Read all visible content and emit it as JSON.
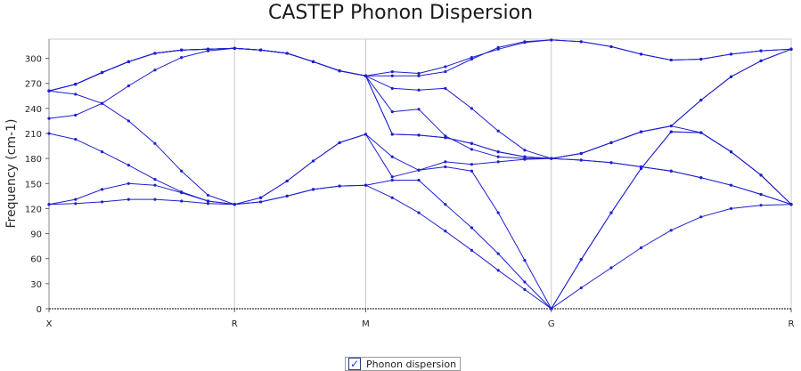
{
  "chart_data": {
    "type": "line",
    "title": "CASTEP Phonon Dispersion",
    "ylabel": "Frequency (cm-1)",
    "xlabel": "",
    "ylim": [
      0,
      323
    ],
    "yticks": [
      0,
      30,
      60,
      90,
      120,
      150,
      180,
      210,
      240,
      270,
      300
    ],
    "x_ticks": [
      {
        "label": "X",
        "x": 0
      },
      {
        "label": "R",
        "x": 1
      },
      {
        "label": "M",
        "x": 1.707
      },
      {
        "label": "G",
        "x": 2.707
      },
      {
        "label": "R",
        "x": 4.0
      }
    ],
    "grid": "vertical lines at high-symmetry points",
    "legend": {
      "label": "Phonon dispersion",
      "checked": true,
      "placement": "bottom-center"
    },
    "colors": {
      "line": "#1f1fd0",
      "grid": "#c8c8c8",
      "axis": "#000000"
    },
    "series": [
      {
        "values": [
          [
            0,
            125
          ],
          [
            0.143,
            126
          ],
          [
            0.286,
            128
          ],
          [
            0.429,
            131
          ],
          [
            0.571,
            131
          ],
          [
            0.714,
            129
          ],
          [
            0.857,
            126
          ],
          [
            1.0,
            125
          ],
          [
            1.141,
            128
          ],
          [
            1.283,
            135
          ],
          [
            1.424,
            143
          ],
          [
            1.566,
            147
          ],
          [
            1.707,
            148
          ],
          [
            1.85,
            133
          ],
          [
            1.993,
            115
          ],
          [
            2.136,
            93
          ],
          [
            2.278,
            70
          ],
          [
            2.421,
            46
          ],
          [
            2.564,
            23
          ],
          [
            2.707,
            0
          ],
          [
            2.868,
            25
          ],
          [
            3.03,
            49
          ],
          [
            3.191,
            73
          ],
          [
            3.353,
            94
          ],
          [
            3.514,
            110
          ],
          [
            3.676,
            120
          ],
          [
            3.837,
            124
          ],
          [
            4.0,
            125
          ]
        ]
      },
      {
        "values": [
          [
            0,
            125
          ],
          [
            0.143,
            131
          ],
          [
            0.286,
            143
          ],
          [
            0.429,
            150
          ],
          [
            0.571,
            148
          ],
          [
            0.714,
            139
          ],
          [
            0.857,
            129
          ],
          [
            1.0,
            125
          ],
          [
            1.141,
            128
          ],
          [
            1.283,
            135
          ],
          [
            1.424,
            143
          ],
          [
            1.566,
            147
          ],
          [
            1.707,
            148
          ],
          [
            1.85,
            154
          ],
          [
            1.993,
            154
          ],
          [
            2.136,
            125
          ],
          [
            2.278,
            97
          ],
          [
            2.421,
            66
          ],
          [
            2.564,
            32
          ],
          [
            2.707,
            0
          ],
          [
            2.868,
            59
          ],
          [
            3.03,
            115
          ],
          [
            3.191,
            168
          ],
          [
            3.353,
            212
          ],
          [
            3.514,
            211
          ],
          [
            3.676,
            188
          ],
          [
            3.837,
            160
          ],
          [
            4.0,
            125
          ]
        ]
      },
      {
        "values": [
          [
            0,
            210
          ],
          [
            0.143,
            203
          ],
          [
            0.286,
            188
          ],
          [
            0.429,
            172
          ],
          [
            0.571,
            155
          ],
          [
            0.714,
            140
          ],
          [
            0.857,
            129
          ],
          [
            1.0,
            125
          ],
          [
            1.141,
            133
          ],
          [
            1.283,
            153
          ],
          [
            1.424,
            177
          ],
          [
            1.566,
            199
          ],
          [
            1.707,
            209
          ],
          [
            1.85,
            158
          ],
          [
            1.993,
            166
          ],
          [
            2.136,
            170
          ],
          [
            2.278,
            165
          ],
          [
            2.421,
            115
          ],
          [
            2.564,
            58
          ],
          [
            2.707,
            0
          ],
          [
            2.868,
            59
          ],
          [
            3.03,
            115
          ],
          [
            3.191,
            168
          ],
          [
            3.353,
            212
          ],
          [
            3.514,
            211
          ],
          [
            3.676,
            188
          ],
          [
            3.837,
            160
          ],
          [
            4.0,
            125
          ]
        ]
      },
      {
        "values": [
          [
            0,
            228
          ],
          [
            0.143,
            232
          ],
          [
            0.286,
            246
          ],
          [
            0.429,
            225
          ],
          [
            0.571,
            198
          ],
          [
            0.714,
            165
          ],
          [
            0.857,
            136
          ],
          [
            1.0,
            125
          ],
          [
            1.141,
            133
          ],
          [
            1.283,
            153
          ],
          [
            1.424,
            177
          ],
          [
            1.566,
            199
          ],
          [
            1.707,
            209
          ],
          [
            1.85,
            182
          ],
          [
            1.993,
            166
          ],
          [
            2.136,
            176
          ],
          [
            2.278,
            173
          ],
          [
            2.421,
            176
          ],
          [
            2.564,
            179
          ],
          [
            2.707,
            180
          ],
          [
            2.868,
            178
          ],
          [
            3.03,
            175
          ],
          [
            3.191,
            170
          ],
          [
            3.353,
            165
          ],
          [
            3.514,
            157
          ],
          [
            3.676,
            148
          ],
          [
            3.837,
            137
          ],
          [
            4.0,
            125
          ]
        ]
      },
      {
        "values": [
          [
            0,
            261
          ],
          [
            0.143,
            257
          ],
          [
            0.286,
            246
          ],
          [
            0.429,
            267
          ],
          [
            0.571,
            286
          ],
          [
            0.714,
            301
          ],
          [
            0.857,
            309
          ],
          [
            1.0,
            312
          ],
          [
            1.141,
            310
          ],
          [
            1.283,
            306
          ],
          [
            1.424,
            296
          ],
          [
            1.566,
            285
          ],
          [
            1.707,
            279
          ],
          [
            1.85,
            236
          ],
          [
            1.993,
            239
          ],
          [
            2.136,
            207
          ],
          [
            2.278,
            191
          ],
          [
            2.421,
            182
          ],
          [
            2.564,
            180
          ],
          [
            2.707,
            180
          ],
          [
            2.868,
            178
          ],
          [
            3.03,
            175
          ],
          [
            3.191,
            170
          ],
          [
            3.353,
            165
          ],
          [
            3.514,
            157
          ],
          [
            3.676,
            148
          ],
          [
            3.837,
            137
          ],
          [
            4.0,
            125
          ]
        ]
      },
      {
        "values": [
          [
            0,
            261
          ],
          [
            0.143,
            269
          ],
          [
            0.286,
            283
          ],
          [
            0.429,
            296
          ],
          [
            0.571,
            306
          ],
          [
            0.714,
            310
          ],
          [
            0.857,
            311
          ],
          [
            1.0,
            312
          ],
          [
            1.141,
            310
          ],
          [
            1.283,
            306
          ],
          [
            1.424,
            296
          ],
          [
            1.566,
            285
          ],
          [
            1.707,
            279
          ],
          [
            1.85,
            209
          ],
          [
            1.993,
            208
          ],
          [
            2.136,
            205
          ],
          [
            2.278,
            198
          ],
          [
            2.421,
            188
          ],
          [
            2.564,
            182
          ],
          [
            2.707,
            180
          ],
          [
            2.868,
            186
          ],
          [
            3.03,
            199
          ],
          [
            3.191,
            212
          ],
          [
            3.353,
            219
          ],
          [
            3.514,
            250
          ],
          [
            3.676,
            278
          ],
          [
            3.837,
            297
          ],
          [
            4.0,
            311
          ]
        ]
      },
      {
        "values": [
          [
            0,
            261
          ],
          [
            0.143,
            269
          ],
          [
            0.286,
            283
          ],
          [
            0.429,
            296
          ],
          [
            0.571,
            306
          ],
          [
            0.714,
            310
          ],
          [
            0.857,
            311
          ],
          [
            1.0,
            312
          ],
          [
            1.141,
            310
          ],
          [
            1.283,
            306
          ],
          [
            1.424,
            296
          ],
          [
            1.566,
            285
          ],
          [
            1.707,
            279
          ],
          [
            1.85,
            209
          ],
          [
            1.993,
            208
          ],
          [
            2.136,
            205
          ],
          [
            2.278,
            198
          ],
          [
            2.421,
            188
          ],
          [
            2.564,
            182
          ],
          [
            2.707,
            180
          ],
          [
            2.868,
            186
          ],
          [
            3.03,
            199
          ],
          [
            3.191,
            212
          ],
          [
            3.353,
            219
          ],
          [
            3.514,
            250
          ],
          [
            3.676,
            278
          ],
          [
            3.837,
            297
          ],
          [
            4.0,
            311
          ]
        ]
      },
      {
        "values": [
          [
            0,
            261
          ],
          [
            0.143,
            269
          ],
          [
            0.286,
            283
          ],
          [
            0.429,
            296
          ],
          [
            0.571,
            306
          ],
          [
            0.714,
            310
          ],
          [
            0.857,
            311
          ],
          [
            1.0,
            312
          ],
          [
            1.141,
            310
          ],
          [
            1.283,
            306
          ],
          [
            1.424,
            296
          ],
          [
            1.566,
            285
          ],
          [
            1.707,
            279
          ],
          [
            1.85,
            264
          ],
          [
            1.993,
            262
          ],
          [
            2.136,
            264
          ],
          [
            2.278,
            240
          ],
          [
            2.421,
            213
          ],
          [
            2.564,
            190
          ],
          [
            2.707,
            180
          ],
          [
            2.868,
            186
          ],
          [
            3.03,
            199
          ],
          [
            3.191,
            212
          ],
          [
            3.353,
            219
          ],
          [
            3.514,
            211
          ],
          [
            3.676,
            188
          ],
          [
            3.837,
            160
          ],
          [
            4.0,
            125
          ]
        ]
      },
      {
        "values": [
          [
            0,
            261
          ],
          [
            0.143,
            269
          ],
          [
            0.286,
            283
          ],
          [
            0.429,
            296
          ],
          [
            0.571,
            306
          ],
          [
            0.714,
            310
          ],
          [
            0.857,
            311
          ],
          [
            1.0,
            312
          ],
          [
            1.141,
            310
          ],
          [
            1.283,
            306
          ],
          [
            1.424,
            296
          ],
          [
            1.566,
            285
          ],
          [
            1.707,
            279
          ],
          [
            1.85,
            284
          ],
          [
            1.993,
            282
          ],
          [
            2.136,
            290
          ],
          [
            2.278,
            301
          ],
          [
            2.421,
            311
          ],
          [
            2.564,
            319
          ],
          [
            2.707,
            322
          ],
          [
            2.868,
            320
          ],
          [
            3.03,
            314
          ],
          [
            3.191,
            305
          ],
          [
            3.353,
            298
          ],
          [
            3.514,
            299
          ],
          [
            3.676,
            305
          ],
          [
            3.837,
            309
          ],
          [
            4.0,
            311
          ]
        ]
      },
      {
        "values": [
          [
            0,
            261
          ],
          [
            0.143,
            269
          ],
          [
            0.286,
            283
          ],
          [
            0.429,
            296
          ],
          [
            0.571,
            306
          ],
          [
            0.714,
            310
          ],
          [
            0.857,
            311
          ],
          [
            1.0,
            312
          ],
          [
            1.141,
            310
          ],
          [
            1.283,
            306
          ],
          [
            1.424,
            296
          ],
          [
            1.566,
            285
          ],
          [
            1.707,
            279
          ],
          [
            1.85,
            279
          ],
          [
            1.993,
            279
          ],
          [
            2.136,
            284
          ],
          [
            2.278,
            299
          ],
          [
            2.421,
            313
          ],
          [
            2.564,
            320
          ],
          [
            2.707,
            322
          ],
          [
            2.868,
            320
          ],
          [
            3.03,
            314
          ],
          [
            3.191,
            305
          ],
          [
            3.353,
            298
          ],
          [
            3.514,
            299
          ],
          [
            3.676,
            305
          ],
          [
            3.837,
            309
          ],
          [
            4.0,
            311
          ]
        ]
      }
    ]
  }
}
